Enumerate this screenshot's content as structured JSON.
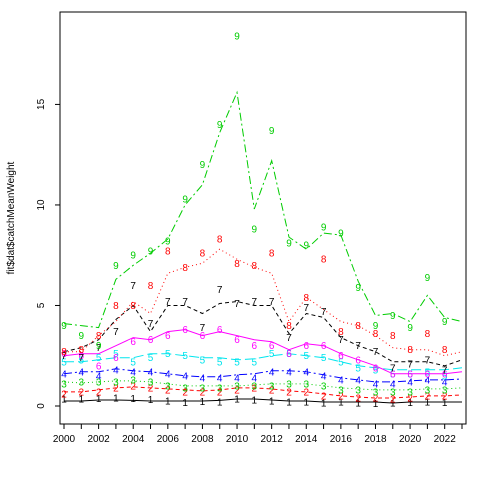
{
  "chart_data": {
    "type": "line",
    "title": "",
    "xlabel": "",
    "ylabel": "fit$dat$catchMeanWeight",
    "xlim": [
      2000,
      2023
    ],
    "ylim": [
      0,
      19
    ],
    "x_ticks": [
      2000,
      2002,
      2004,
      2006,
      2008,
      2010,
      2012,
      2014,
      2016,
      2018,
      2020,
      2022
    ],
    "y_ticks": [
      0,
      5,
      10,
      15
    ],
    "grid": false,
    "legend": "none",
    "x": [
      2000,
      2001,
      2002,
      2003,
      2004,
      2005,
      2006,
      2007,
      2008,
      2009,
      2010,
      2011,
      2012,
      2013,
      2014,
      2015,
      2016,
      2017,
      2018,
      2019,
      2020,
      2021,
      2022,
      2023
    ],
    "series": [
      {
        "age": "1",
        "color": "#000000",
        "dash": "",
        "fitted": [
          0.25,
          0.25,
          0.3,
          0.3,
          0.28,
          0.25,
          0.25,
          0.25,
          0.25,
          0.28,
          0.35,
          0.35,
          0.3,
          0.25,
          0.25,
          0.2,
          0.2,
          0.2,
          0.2,
          0.15,
          0.2,
          0.2,
          0.2,
          0.2
        ],
        "observed": [
          0.35,
          0.35,
          0.38,
          0.4,
          0.38,
          0.33,
          0.25,
          0.18,
          0.22,
          0.2,
          0.35,
          0.3,
          0.25,
          0.2,
          0.2,
          0.15,
          0.2,
          0.15,
          0.13,
          0.15,
          0.18,
          0.2,
          0.18,
          null
        ]
      },
      {
        "age": "2",
        "color": "#ff0000",
        "dash": "4,3",
        "fitted": [
          0.7,
          0.7,
          0.8,
          0.9,
          0.95,
          0.9,
          0.85,
          0.8,
          0.75,
          0.8,
          0.9,
          0.9,
          0.85,
          0.75,
          0.7,
          0.6,
          0.5,
          0.45,
          0.4,
          0.4,
          0.45,
          0.5,
          0.5,
          0.55
        ],
        "observed": [
          0.6,
          0.7,
          0.7,
          0.9,
          1.0,
          0.9,
          0.8,
          0.7,
          0.7,
          0.7,
          0.8,
          0.9,
          0.8,
          0.7,
          0.7,
          0.5,
          0.5,
          0.4,
          0.4,
          0.35,
          0.4,
          0.5,
          0.5,
          null
        ]
      },
      {
        "age": "3",
        "color": "#00cc00",
        "dash": "1,3",
        "fitted": [
          1.2,
          1.15,
          1.2,
          1.25,
          1.25,
          1.2,
          1.1,
          1.0,
          1.0,
          1.0,
          1.0,
          1.05,
          1.1,
          1.1,
          1.1,
          1.0,
          0.9,
          0.85,
          0.8,
          0.8,
          0.8,
          0.85,
          0.85,
          0.9
        ],
        "observed": [
          1.1,
          1.2,
          1.2,
          1.2,
          1.3,
          1.2,
          1.0,
          0.9,
          0.9,
          0.9,
          1.0,
          1.0,
          1.0,
          1.1,
          1.1,
          1.0,
          0.8,
          0.8,
          0.7,
          0.7,
          0.7,
          0.8,
          0.8,
          null
        ]
      },
      {
        "age": "4",
        "color": "#0000ff",
        "dash": "8,3,2,3",
        "fitted": [
          1.6,
          1.7,
          1.7,
          1.85,
          1.75,
          1.7,
          1.6,
          1.5,
          1.45,
          1.45,
          1.55,
          1.6,
          1.75,
          1.75,
          1.7,
          1.55,
          1.4,
          1.3,
          1.2,
          1.2,
          1.25,
          1.3,
          1.3,
          1.35
        ],
        "observed": [
          1.6,
          1.7,
          1.5,
          1.8,
          1.7,
          1.7,
          1.6,
          1.5,
          1.4,
          1.4,
          1.4,
          1.4,
          1.7,
          1.7,
          1.7,
          1.5,
          1.3,
          1.3,
          1.1,
          1.1,
          1.2,
          1.3,
          1.2,
          null
        ]
      },
      {
        "age": "5",
        "color": "#00e5ee",
        "dash": "10,4",
        "fitted": [
          2.2,
          2.2,
          2.3,
          2.4,
          2.4,
          2.6,
          2.6,
          2.5,
          2.4,
          2.4,
          2.3,
          2.35,
          2.5,
          2.6,
          2.5,
          2.4,
          2.2,
          2.0,
          1.9,
          1.8,
          1.8,
          1.8,
          1.8,
          1.9
        ],
        "observed": [
          2.2,
          2.3,
          2.4,
          2.6,
          2.2,
          2.4,
          2.6,
          2.5,
          2.3,
          2.2,
          2.2,
          2.2,
          2.6,
          2.6,
          2.5,
          2.4,
          2.2,
          1.9,
          1.8,
          1.6,
          1.6,
          1.7,
          1.5,
          null
        ]
      },
      {
        "age": "6",
        "color": "#ff00ff",
        "dash": "",
        "fitted": [
          2.5,
          2.6,
          2.6,
          3.0,
          3.4,
          3.3,
          3.7,
          3.8,
          3.5,
          3.7,
          3.5,
          3.3,
          3.2,
          2.8,
          3.1,
          3.0,
          2.6,
          2.3,
          2.0,
          1.6,
          1.6,
          1.6,
          1.6,
          1.7
        ],
        "observed": [
          2.6,
          2.5,
          2.0,
          2.4,
          3.2,
          3.3,
          3.5,
          3.8,
          3.5,
          3.8,
          3.3,
          3.0,
          3.0,
          2.6,
          3.0,
          3.0,
          2.5,
          2.3,
          1.9,
          1.6,
          1.6,
          1.6,
          1.6,
          null
        ]
      },
      {
        "age": "7",
        "color": "#000000",
        "dash": "4,3",
        "fitted": [
          2.7,
          2.9,
          3.3,
          4.3,
          5.0,
          3.7,
          5.0,
          5.0,
          4.6,
          5.1,
          5.2,
          5.0,
          5.0,
          3.6,
          4.6,
          4.4,
          3.4,
          3.0,
          2.7,
          2.2,
          2.2,
          2.2,
          2.0,
          2.3
        ],
        "observed": [
          2.5,
          2.4,
          2.9,
          3.7,
          6.0,
          4.1,
          5.2,
          5.2,
          3.9,
          5.8,
          5.1,
          5.2,
          5.2,
          3.4,
          4.9,
          4.7,
          3.3,
          3.0,
          2.7,
          1.9,
          2.1,
          2.3,
          1.8,
          null
        ]
      },
      {
        "age": "8",
        "color": "#ff0000",
        "dash": "1,3",
        "fitted": [
          2.7,
          2.7,
          3.5,
          4.2,
          5.2,
          4.6,
          6.6,
          6.9,
          7.1,
          7.8,
          7.3,
          6.9,
          6.6,
          4.2,
          5.4,
          4.8,
          4.2,
          4.0,
          3.5,
          2.9,
          2.8,
          2.8,
          2.5,
          2.7
        ],
        "observed": [
          2.7,
          2.8,
          3.5,
          5.0,
          5.0,
          6.0,
          7.7,
          6.9,
          7.6,
          8.3,
          7.1,
          7.0,
          7.6,
          4.0,
          5.4,
          7.3,
          3.7,
          4.0,
          3.6,
          3.5,
          2.8,
          3.6,
          2.8,
          null
        ]
      },
      {
        "age": "9",
        "color": "#00cc00",
        "dash": "8,3,2,3",
        "fitted": [
          4.1,
          4.0,
          3.9,
          6.3,
          7.0,
          7.6,
          8.3,
          10.0,
          11.0,
          13.6,
          15.6,
          9.8,
          12.2,
          8.4,
          7.8,
          8.6,
          8.5,
          6.2,
          4.5,
          4.6,
          4.2,
          5.5,
          4.4,
          4.2
        ],
        "observed": [
          4.0,
          3.5,
          3.0,
          7.0,
          7.5,
          7.7,
          8.2,
          10.3,
          12.0,
          14.0,
          18.4,
          8.8,
          13.7,
          8.1,
          8.0,
          8.9,
          8.6,
          5.9,
          4.0,
          4.5,
          3.9,
          6.4,
          4.2,
          null
        ]
      }
    ]
  }
}
